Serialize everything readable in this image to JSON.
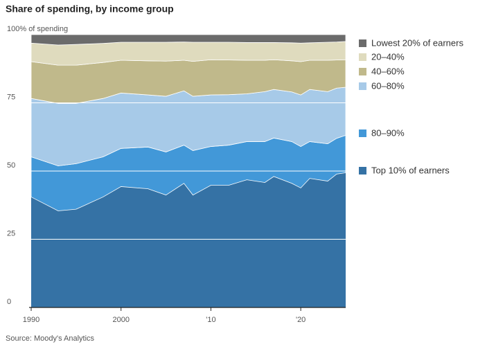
{
  "chart_data": {
    "type": "stacked-area",
    "title": "Share of spending, by income group",
    "source": "Source: Moody's Analytics",
    "x": [
      1990,
      1993,
      1995,
      1998,
      2000,
      2003,
      2005,
      2007,
      2008,
      2010,
      2012,
      2014,
      2016,
      2017,
      2019,
      2020,
      2021,
      2023,
      2024,
      2025
    ],
    "xlim": [
      1990,
      2025
    ],
    "xticks": [
      1990,
      2000,
      {
        "value": 2010,
        "label": "'10"
      },
      {
        "value": 2020,
        "label": "'20"
      }
    ],
    "ylim": [
      0,
      100
    ],
    "yticks": [
      0,
      25,
      50,
      75,
      {
        "value": 100,
        "label": "100% of spending"
      }
    ],
    "grid": true,
    "legend": "right",
    "series": [
      {
        "name": "Top 10% of earners",
        "color": "#3572a5",
        "values": [
          40.5,
          35.4,
          36.0,
          40.5,
          44.3,
          43.5,
          41.2,
          45.5,
          41.2,
          44.8,
          44.8,
          46.8,
          45.8,
          48.0,
          45.5,
          43.8,
          47.3,
          46.3,
          48.9,
          49.4
        ]
      },
      {
        "name": "80–90%",
        "color": "#4298d8",
        "values": [
          14.7,
          16.5,
          16.7,
          14.7,
          14.0,
          15.3,
          15.8,
          14.0,
          16.3,
          14.2,
          14.7,
          14.0,
          15.0,
          14.1,
          15.3,
          15.2,
          13.5,
          13.7,
          13.1,
          13.7
        ]
      },
      {
        "name": "60–80%",
        "color": "#a7cae8",
        "values": [
          21.4,
          22.9,
          22.1,
          21.4,
          20.3,
          19.1,
          20.4,
          19.9,
          19.9,
          18.9,
          18.5,
          17.5,
          18.3,
          17.8,
          18.2,
          18.9,
          19.1,
          19.1,
          18.4,
          17.6
        ]
      },
      {
        "name": "40–60%",
        "color": "#c0b98b",
        "values": [
          13.5,
          14.0,
          14.0,
          13.2,
          12.0,
          12.5,
          12.9,
          11.2,
          12.8,
          12.9,
          12.7,
          12.3,
          11.5,
          10.9,
          11.4,
          12.2,
          10.7,
          11.5,
          10.3,
          10.1
        ]
      },
      {
        "name": "20–40%",
        "color": "#dfdbbe",
        "values": [
          6.8,
          7.4,
          7.6,
          7.0,
          6.6,
          6.8,
          6.9,
          6.7,
          7.0,
          6.4,
          6.5,
          6.5,
          6.5,
          6.3,
          6.6,
          6.8,
          6.4,
          6.6,
          6.6,
          6.7
        ]
      },
      {
        "name": "Lowest 20% of earners",
        "color": "#6b6b6b",
        "values": [
          3.1,
          3.8,
          3.6,
          3.2,
          2.8,
          2.8,
          2.8,
          2.7,
          2.8,
          2.8,
          2.8,
          2.9,
          2.9,
          2.9,
          3.0,
          3.1,
          3.0,
          2.8,
          2.7,
          2.5
        ]
      }
    ]
  }
}
